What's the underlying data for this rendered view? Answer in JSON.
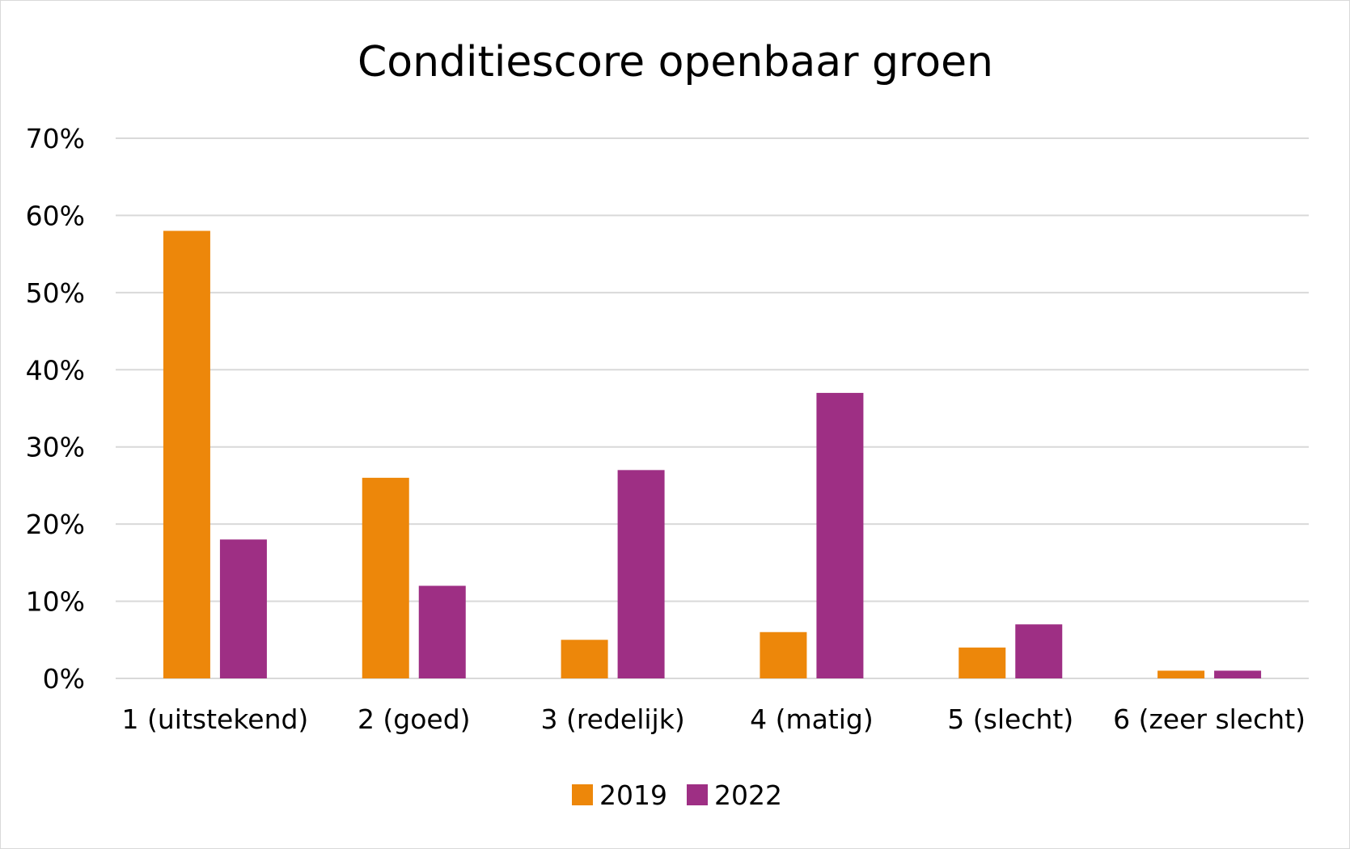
{
  "chart_data": {
    "type": "bar",
    "title": "Conditiescore openbaar groen",
    "xlabel": "",
    "ylabel": "",
    "categories": [
      "1 (uitstekend)",
      "2 (goed)",
      "3 (redelijk)",
      "4 (matig)",
      "5 (slecht)",
      "6 (zeer slecht)"
    ],
    "series": [
      {
        "name": "2019",
        "values": [
          58,
          26,
          5,
          6,
          4,
          1
        ],
        "color": "#ed870a"
      },
      {
        "name": "2022",
        "values": [
          18,
          12,
          27,
          37,
          7,
          1
        ],
        "color": "#9e2f84"
      }
    ],
    "ylim": [
      0,
      70
    ],
    "yticks": [
      "0%",
      "10%",
      "20%",
      "30%",
      "40%",
      "50%",
      "60%",
      "70%"
    ],
    "grid": true,
    "legend_position": "bottom"
  }
}
